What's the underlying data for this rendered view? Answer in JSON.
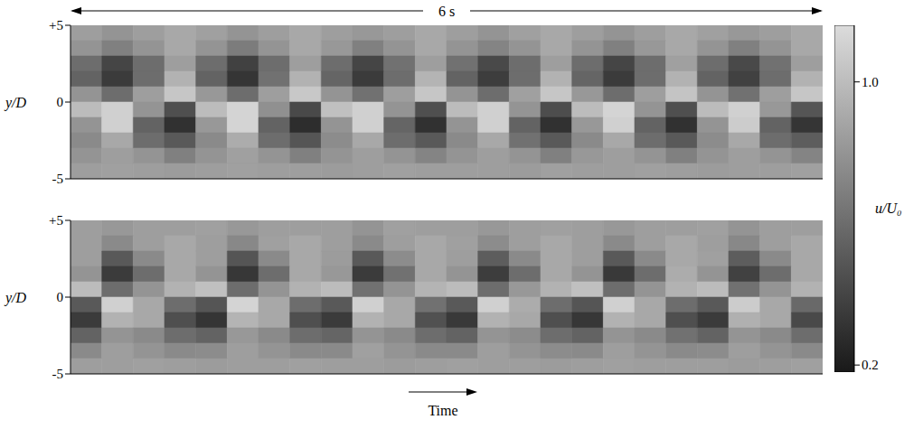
{
  "chart_data": [
    {
      "type": "heatmap",
      "annotation": "6 s",
      "xlim": [
        0,
        6
      ],
      "ylim": [
        -5,
        5
      ],
      "yticks": [
        {
          "value": 5,
          "label": "+5"
        },
        0,
        -5
      ],
      "ylabel": "y/D",
      "tick_labels": "y",
      "x": [
        0.125,
        0.375,
        0.625,
        0.875,
        1.125,
        1.375,
        1.625,
        1.875,
        2.125,
        2.375,
        2.625,
        2.875,
        3.125,
        3.375,
        3.625,
        3.875,
        4.125,
        4.375,
        4.625,
        4.875,
        5.125,
        5.375,
        5.625,
        5.875
      ],
      "y": [
        4.5,
        3.5,
        2.5,
        1.5,
        0.5,
        -0.5,
        -1.5,
        -2.5,
        -3.5,
        -4.5
      ],
      "cells": [
        [
          0.85,
          0.8,
          0.85,
          0.9,
          0.86,
          0.8,
          0.85,
          0.9,
          0.85,
          0.82,
          0.85,
          0.9,
          0.85,
          0.8,
          0.86,
          0.9,
          0.85,
          0.8,
          0.85,
          0.9,
          0.86,
          0.82,
          0.85,
          0.9
        ],
        [
          0.8,
          0.7,
          0.8,
          0.9,
          0.8,
          0.68,
          0.8,
          0.9,
          0.82,
          0.7,
          0.8,
          0.9,
          0.8,
          0.72,
          0.8,
          0.9,
          0.8,
          0.7,
          0.82,
          0.9,
          0.8,
          0.7,
          0.8,
          0.9
        ],
        [
          0.6,
          0.4,
          0.6,
          0.85,
          0.6,
          0.38,
          0.6,
          0.85,
          0.6,
          0.4,
          0.62,
          0.85,
          0.62,
          0.42,
          0.6,
          0.85,
          0.6,
          0.4,
          0.6,
          0.86,
          0.6,
          0.42,
          0.62,
          0.85
        ],
        [
          0.55,
          0.35,
          0.6,
          0.95,
          0.55,
          0.32,
          0.62,
          0.95,
          0.56,
          0.35,
          0.6,
          0.96,
          0.55,
          0.36,
          0.6,
          0.95,
          0.56,
          0.35,
          0.6,
          0.95,
          0.55,
          0.38,
          0.6,
          0.95
        ],
        [
          0.8,
          0.6,
          0.85,
          1.05,
          0.82,
          0.6,
          0.85,
          1.06,
          0.8,
          0.62,
          0.85,
          1.05,
          0.8,
          0.6,
          0.86,
          1.05,
          0.82,
          0.6,
          0.85,
          1.04,
          0.8,
          0.62,
          0.85,
          1.05
        ],
        [
          1.0,
          1.1,
          0.8,
          0.45,
          1.0,
          1.12,
          0.78,
          0.42,
          1.02,
          1.1,
          0.8,
          0.45,
          1.0,
          1.1,
          0.8,
          0.44,
          1.0,
          1.12,
          0.8,
          0.45,
          1.0,
          1.1,
          0.82,
          0.48
        ],
        [
          0.8,
          1.1,
          0.55,
          0.3,
          0.82,
          1.12,
          0.55,
          0.28,
          0.8,
          1.1,
          0.56,
          0.3,
          0.8,
          1.1,
          0.55,
          0.3,
          0.82,
          1.1,
          0.55,
          0.3,
          0.8,
          1.08,
          0.55,
          0.32
        ],
        [
          0.75,
          0.9,
          0.6,
          0.5,
          0.75,
          0.92,
          0.6,
          0.48,
          0.76,
          0.9,
          0.6,
          0.5,
          0.75,
          0.9,
          0.62,
          0.5,
          0.75,
          0.9,
          0.6,
          0.5,
          0.76,
          0.9,
          0.6,
          0.52
        ],
        [
          0.8,
          0.85,
          0.8,
          0.7,
          0.8,
          0.86,
          0.8,
          0.7,
          0.8,
          0.85,
          0.8,
          0.72,
          0.8,
          0.85,
          0.8,
          0.7,
          0.82,
          0.85,
          0.8,
          0.7,
          0.8,
          0.85,
          0.8,
          0.72
        ],
        [
          0.85,
          0.86,
          0.85,
          0.84,
          0.85,
          0.86,
          0.85,
          0.85,
          0.84,
          0.85,
          0.86,
          0.85,
          0.85,
          0.85,
          0.84,
          0.86,
          0.85,
          0.85,
          0.86,
          0.85,
          0.84,
          0.85,
          0.85,
          0.86
        ]
      ],
      "colorbar": {
        "label": "u/U₀",
        "range": [
          0.18,
          1.16
        ],
        "ticks": [
          {
            "value": 1,
            "label": "1.0"
          },
          0.2
        ]
      }
    },
    {
      "type": "heatmap",
      "xlabel": "Time",
      "xlim": [
        0,
        6
      ],
      "ylim": [
        -5,
        5
      ],
      "yticks": [
        {
          "value": 5,
          "label": "+5"
        },
        0,
        -5
      ],
      "ylabel": "y/D",
      "tick_labels": "y",
      "x": [
        0.125,
        0.375,
        0.625,
        0.875,
        1.125,
        1.375,
        1.625,
        1.875,
        2.125,
        2.375,
        2.625,
        2.875,
        3.125,
        3.375,
        3.625,
        3.875,
        4.125,
        4.375,
        4.625,
        4.875,
        5.125,
        5.375,
        5.625,
        5.875
      ],
      "y": [
        4.5,
        3.5,
        2.5,
        1.5,
        0.5,
        -0.5,
        -1.5,
        -2.5,
        -3.5,
        -4.5
      ],
      "cells": [
        [
          0.85,
          0.82,
          0.85,
          0.85,
          0.86,
          0.82,
          0.85,
          0.85,
          0.85,
          0.8,
          0.86,
          0.85,
          0.85,
          0.82,
          0.85,
          0.86,
          0.85,
          0.82,
          0.85,
          0.85,
          0.86,
          0.8,
          0.85,
          0.85
        ],
        [
          0.85,
          0.75,
          0.85,
          0.9,
          0.85,
          0.74,
          0.86,
          0.9,
          0.85,
          0.75,
          0.85,
          0.9,
          0.86,
          0.76,
          0.85,
          0.9,
          0.85,
          0.75,
          0.85,
          0.9,
          0.85,
          0.74,
          0.85,
          0.9
        ],
        [
          0.85,
          0.5,
          0.75,
          0.9,
          0.85,
          0.48,
          0.75,
          0.9,
          0.84,
          0.5,
          0.76,
          0.9,
          0.85,
          0.52,
          0.75,
          0.9,
          0.85,
          0.5,
          0.75,
          0.9,
          0.86,
          0.52,
          0.75,
          0.9
        ],
        [
          0.8,
          0.35,
          0.6,
          0.9,
          0.8,
          0.33,
          0.6,
          0.9,
          0.82,
          0.35,
          0.62,
          0.9,
          0.8,
          0.36,
          0.6,
          0.9,
          0.8,
          0.34,
          0.6,
          0.92,
          0.8,
          0.38,
          0.6,
          0.9
        ],
        [
          1.0,
          0.6,
          0.8,
          0.95,
          1.02,
          0.6,
          0.8,
          0.95,
          1.0,
          0.62,
          0.8,
          0.96,
          1.0,
          0.6,
          0.82,
          0.95,
          1.02,
          0.6,
          0.8,
          0.95,
          1.0,
          0.62,
          0.8,
          0.95
        ],
        [
          0.5,
          1.1,
          0.9,
          0.6,
          0.48,
          1.12,
          0.9,
          0.6,
          0.5,
          1.1,
          0.9,
          0.62,
          0.5,
          1.1,
          0.92,
          0.6,
          0.48,
          1.1,
          0.9,
          0.6,
          0.5,
          1.08,
          0.9,
          0.58
        ],
        [
          0.35,
          0.95,
          0.9,
          0.45,
          0.32,
          0.96,
          0.9,
          0.45,
          0.35,
          0.95,
          0.9,
          0.46,
          0.34,
          0.95,
          0.9,
          0.45,
          0.33,
          0.95,
          0.9,
          0.45,
          0.35,
          0.94,
          0.9,
          0.42
        ],
        [
          0.55,
          0.8,
          0.75,
          0.6,
          0.55,
          0.82,
          0.75,
          0.6,
          0.56,
          0.8,
          0.75,
          0.6,
          0.55,
          0.8,
          0.76,
          0.6,
          0.55,
          0.8,
          0.75,
          0.62,
          0.55,
          0.8,
          0.75,
          0.6
        ],
        [
          0.75,
          0.85,
          0.8,
          0.75,
          0.76,
          0.85,
          0.8,
          0.75,
          0.75,
          0.86,
          0.8,
          0.75,
          0.75,
          0.85,
          0.8,
          0.76,
          0.75,
          0.85,
          0.8,
          0.75,
          0.76,
          0.85,
          0.8,
          0.75
        ],
        [
          0.85,
          0.85,
          0.86,
          0.85,
          0.84,
          0.85,
          0.85,
          0.86,
          0.85,
          0.85,
          0.84,
          0.85,
          0.86,
          0.85,
          0.85,
          0.84,
          0.85,
          0.86,
          0.85,
          0.85,
          0.85,
          0.84,
          0.85,
          0.86
        ]
      ]
    }
  ]
}
